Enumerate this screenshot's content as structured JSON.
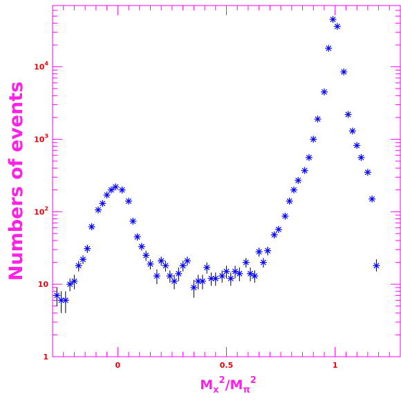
{
  "chart_data": {
    "type": "scatter",
    "title": "",
    "xlabel": "Mx²/Mπ²",
    "xlabel_parts": {
      "m1": "M",
      "s1": "x",
      "p1": "2",
      "slash": "/",
      "m2": "M",
      "s2": "π",
      "p2": "2"
    },
    "ylabel": "Numbers of events",
    "xlim": [
      -0.3,
      1.3
    ],
    "ylim": [
      1,
      70000
    ],
    "yscale": "log",
    "x_ticks": [
      {
        "value": 0,
        "label": "0"
      },
      {
        "value": 0.5,
        "label": "0.5"
      },
      {
        "value": 1,
        "label": "1"
      }
    ],
    "y_ticks": [
      {
        "value": 1,
        "base": "1",
        "exp": ""
      },
      {
        "value": 10,
        "base": "10",
        "exp": ""
      },
      {
        "value": 100,
        "base": "10",
        "exp": "2"
      },
      {
        "value": 1000,
        "base": "10",
        "exp": "3"
      },
      {
        "value": 10000,
        "base": "10",
        "exp": "4"
      }
    ],
    "grid": false,
    "legend": "none",
    "colors": {
      "frame": "#ff00ff",
      "marker": "#0000ff",
      "tick_label": "#e8000b",
      "axis_title": "#ff22e6",
      "error_bar": "#000000"
    },
    "series": [
      {
        "marker": "asterisk",
        "points": [
          {
            "x": -0.28,
            "y": 7,
            "lo": 5,
            "hi": 9
          },
          {
            "x": -0.26,
            "y": 6,
            "lo": 4,
            "hi": 8
          },
          {
            "x": -0.24,
            "y": 6,
            "lo": 4,
            "hi": 8
          },
          {
            "x": -0.22,
            "y": 10,
            "lo": 8,
            "hi": 12
          },
          {
            "x": -0.2,
            "y": 11,
            "lo": 8.5,
            "hi": 13.5
          },
          {
            "x": -0.18,
            "y": 18,
            "lo": 15,
            "hi": 21
          },
          {
            "x": -0.16,
            "y": 22,
            "lo": 19,
            "hi": 25
          },
          {
            "x": -0.14,
            "y": 31,
            "lo": 27,
            "hi": 35
          },
          {
            "x": -0.12,
            "y": 62,
            "lo": 56,
            "hi": 68
          },
          {
            "x": -0.09,
            "y": 106
          },
          {
            "x": -0.07,
            "y": 130
          },
          {
            "x": -0.05,
            "y": 170
          },
          {
            "x": -0.03,
            "y": 200
          },
          {
            "x": -0.01,
            "y": 220
          },
          {
            "x": 0.02,
            "y": 200
          },
          {
            "x": 0.05,
            "y": 140
          },
          {
            "x": 0.07,
            "y": 74
          },
          {
            "x": 0.09,
            "y": 45,
            "lo": 40,
            "hi": 50
          },
          {
            "x": 0.11,
            "y": 33,
            "lo": 29,
            "hi": 37
          },
          {
            "x": 0.13,
            "y": 25,
            "lo": 21,
            "hi": 29
          },
          {
            "x": 0.15,
            "y": 19,
            "lo": 16,
            "hi": 22
          },
          {
            "x": 0.18,
            "y": 13,
            "lo": 10,
            "hi": 16
          },
          {
            "x": 0.2,
            "y": 21,
            "lo": 18,
            "hi": 24
          },
          {
            "x": 0.22,
            "y": 18,
            "lo": 15,
            "hi": 21
          },
          {
            "x": 0.24,
            "y": 13,
            "lo": 10.5,
            "hi": 15.5
          },
          {
            "x": 0.26,
            "y": 11,
            "lo": 8.5,
            "hi": 13.5
          },
          {
            "x": 0.28,
            "y": 14,
            "lo": 11,
            "hi": 17
          },
          {
            "x": 0.3,
            "y": 18,
            "lo": 15,
            "hi": 21
          },
          {
            "x": 0.32,
            "y": 21,
            "lo": 18,
            "hi": 24
          },
          {
            "x": 0.35,
            "y": 9,
            "lo": 6.5,
            "hi": 11.5
          },
          {
            "x": 0.37,
            "y": 11,
            "lo": 8.5,
            "hi": 13.5
          },
          {
            "x": 0.39,
            "y": 11,
            "lo": 8.5,
            "hi": 13.5
          },
          {
            "x": 0.41,
            "y": 17,
            "lo": 14,
            "hi": 20
          },
          {
            "x": 0.43,
            "y": 12,
            "lo": 9.5,
            "hi": 14.5
          },
          {
            "x": 0.45,
            "y": 12,
            "lo": 9.5,
            "hi": 14.5
          },
          {
            "x": 0.48,
            "y": 13,
            "lo": 10.5,
            "hi": 15.5
          },
          {
            "x": 0.5,
            "y": 15,
            "lo": 12,
            "hi": 18
          },
          {
            "x": 0.52,
            "y": 12,
            "lo": 9.5,
            "hi": 14.5
          },
          {
            "x": 0.54,
            "y": 15,
            "lo": 12,
            "hi": 18
          },
          {
            "x": 0.56,
            "y": 14,
            "lo": 11,
            "hi": 17
          },
          {
            "x": 0.59,
            "y": 20,
            "lo": 17,
            "hi": 23
          },
          {
            "x": 0.61,
            "y": 14,
            "lo": 11,
            "hi": 17
          },
          {
            "x": 0.63,
            "y": 13,
            "lo": 10.5,
            "hi": 15.5
          },
          {
            "x": 0.65,
            "y": 28,
            "lo": 24,
            "hi": 32
          },
          {
            "x": 0.67,
            "y": 20,
            "lo": 17,
            "hi": 23
          },
          {
            "x": 0.69,
            "y": 29,
            "lo": 25,
            "hi": 33
          },
          {
            "x": 0.72,
            "y": 48,
            "lo": 43,
            "hi": 53
          },
          {
            "x": 0.74,
            "y": 57,
            "lo": 52,
            "hi": 62
          },
          {
            "x": 0.77,
            "y": 87
          },
          {
            "x": 0.79,
            "y": 140
          },
          {
            "x": 0.81,
            "y": 200
          },
          {
            "x": 0.83,
            "y": 270
          },
          {
            "x": 0.86,
            "y": 370
          },
          {
            "x": 0.88,
            "y": 560
          },
          {
            "x": 0.9,
            "y": 1000
          },
          {
            "x": 0.92,
            "y": 1900
          },
          {
            "x": 0.95,
            "y": 4500
          },
          {
            "x": 0.97,
            "y": 18000
          },
          {
            "x": 0.99,
            "y": 45000
          },
          {
            "x": 1.01,
            "y": 36000
          },
          {
            "x": 1.04,
            "y": 8500
          },
          {
            "x": 1.06,
            "y": 2200
          },
          {
            "x": 1.08,
            "y": 1300
          },
          {
            "x": 1.1,
            "y": 820
          },
          {
            "x": 1.12,
            "y": 560
          },
          {
            "x": 1.15,
            "y": 350
          },
          {
            "x": 1.17,
            "y": 150
          },
          {
            "x": 1.19,
            "y": 18,
            "lo": 15,
            "hi": 22
          }
        ]
      }
    ]
  }
}
